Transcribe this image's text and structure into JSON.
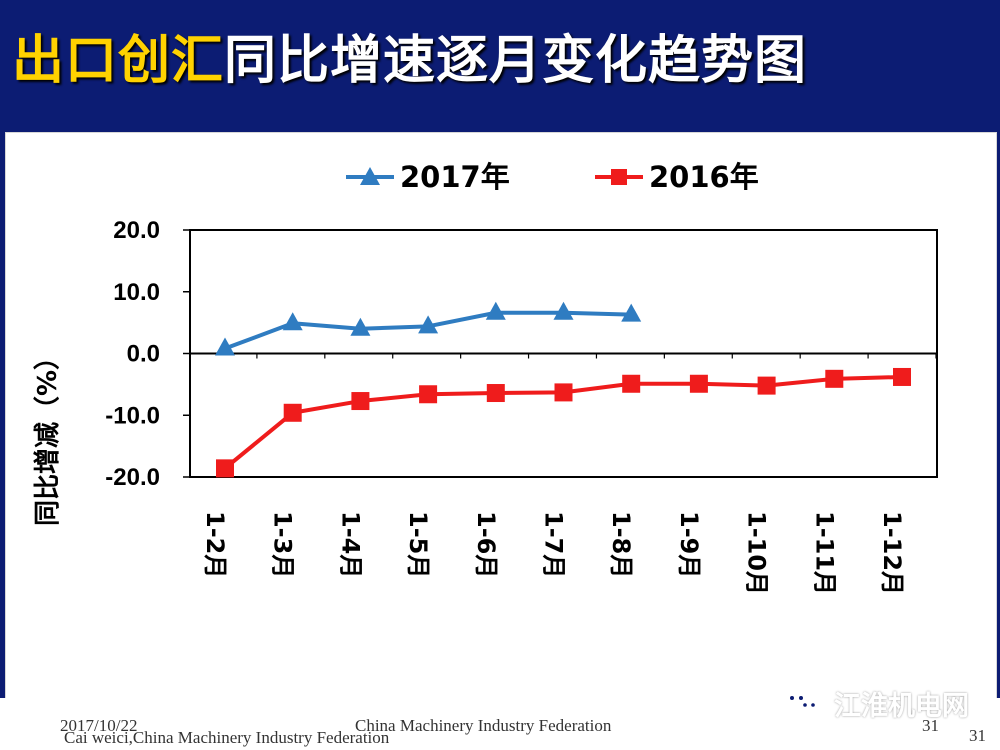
{
  "title": {
    "accent": "出口创汇",
    "main": "同比增速逐月变化趋势图"
  },
  "chart_data": {
    "type": "line",
    "categories": [
      "1-2月",
      "1-3月",
      "1-4月",
      "1-5月",
      "1-6月",
      "1-7月",
      "1-8月",
      "1-9月",
      "1-10月",
      "1-11月",
      "1-12月"
    ],
    "series": [
      {
        "name": "2017年",
        "color": "#2f7cc1",
        "marker": "triangle",
        "values": [
          0.8,
          4.9,
          4.0,
          4.4,
          6.6,
          6.6,
          6.3,
          null,
          null,
          null,
          null
        ]
      },
      {
        "name": "2016年",
        "color": "#ef1c1c",
        "marker": "square",
        "values": [
          -18.6,
          -9.6,
          -7.7,
          -6.6,
          -6.4,
          -6.3,
          -4.9,
          -4.9,
          -5.2,
          -4.1,
          -3.8
        ]
      }
    ],
    "ylabel": "同比增减（%）",
    "ylim": [
      -20,
      20
    ],
    "yticks": [
      20,
      10,
      0,
      -10,
      -20
    ],
    "ytick_labels": [
      "20.0",
      "10.0",
      "0.0",
      "-10.0",
      "-20.0"
    ],
    "legend_position": "top",
    "grid": false
  },
  "footer": {
    "date": "2017/10/22",
    "author": "Cai weici,China Machinery Industry Federation",
    "center": "China Machinery Industry Federation",
    "page_primary": "31",
    "page_secondary": "31"
  },
  "watermark": {
    "text": "江淮机电网",
    "icon": "wechat-icon"
  },
  "colors": {
    "background": "#0c1c73",
    "title_accent": "#ffd200",
    "title_text": "#ffffff",
    "axis": "#000000"
  }
}
